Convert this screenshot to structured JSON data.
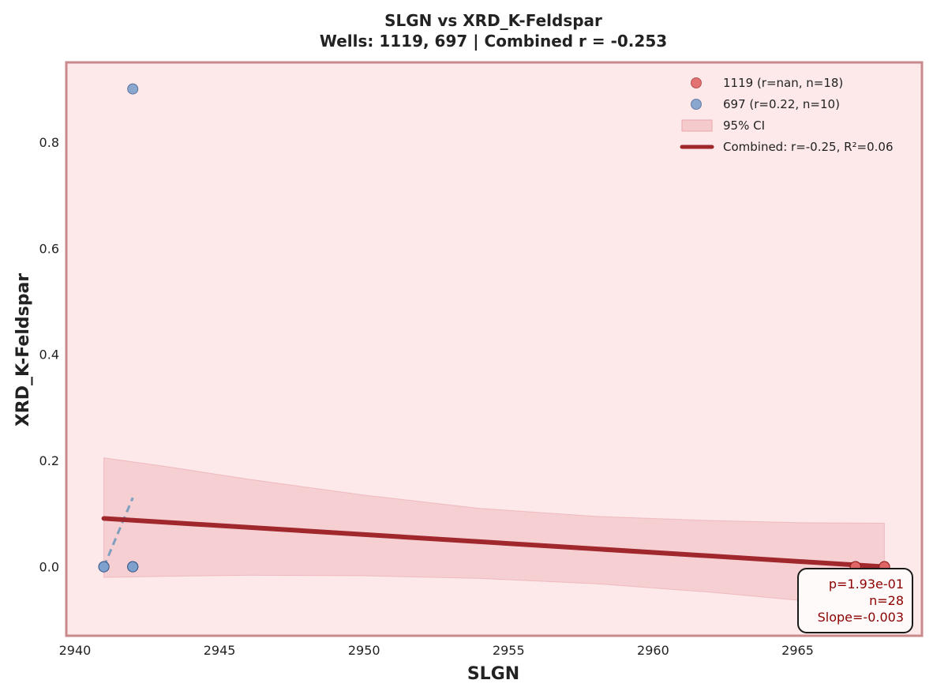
{
  "chart_data": {
    "type": "scatter",
    "title": "SLGN vs XRD_K-Feldspar",
    "subtitle": "Wells: 1119, 697 | Combined r = -0.253",
    "xlabel": "SLGN",
    "ylabel": "XRD_K-Feldspar",
    "xlim": [
      2939.7,
      2969.3
    ],
    "ylim": [
      -0.13,
      0.95
    ],
    "x_ticks": [
      2940,
      2945,
      2950,
      2955,
      2960,
      2965
    ],
    "y_ticks": [
      0.0,
      0.2,
      0.4,
      0.6,
      0.8
    ],
    "x_tick_labels": [
      "2940",
      "2945",
      "2950",
      "2955",
      "2960",
      "2965"
    ],
    "y_tick_labels": [
      "0.0",
      "0.2",
      "0.4",
      "0.6",
      "0.8"
    ],
    "grid": false,
    "legend_position": "top-right",
    "plot_background": "#fde8ea",
    "frame_color": "#c98a8c",
    "series": [
      {
        "name": "1119 (r=nan, n=18)",
        "color": "#e06666",
        "points": [
          {
            "x": 2967,
            "y": 0.0
          },
          {
            "x": 2967,
            "y": 0.0
          },
          {
            "x": 2967,
            "y": 0.0
          },
          {
            "x": 2967,
            "y": 0.0
          },
          {
            "x": 2967,
            "y": 0.0
          },
          {
            "x": 2967,
            "y": 0.0
          },
          {
            "x": 2967,
            "y": 0.0
          },
          {
            "x": 2967,
            "y": 0.0
          },
          {
            "x": 2967,
            "y": 0.0
          },
          {
            "x": 2968,
            "y": 0.0
          },
          {
            "x": 2968,
            "y": 0.0
          },
          {
            "x": 2968,
            "y": 0.0
          },
          {
            "x": 2968,
            "y": 0.0
          },
          {
            "x": 2968,
            "y": 0.0
          },
          {
            "x": 2968,
            "y": 0.0
          },
          {
            "x": 2968,
            "y": 0.0
          },
          {
            "x": 2968,
            "y": 0.0
          },
          {
            "x": 2968,
            "y": 0.0
          }
        ]
      },
      {
        "name": "697 (r=0.22, n=10)",
        "color": "#7da0cc",
        "points": [
          {
            "x": 2941,
            "y": 0.0
          },
          {
            "x": 2941,
            "y": 0.0
          },
          {
            "x": 2941,
            "y": 0.0
          },
          {
            "x": 2941,
            "y": 0.0
          },
          {
            "x": 2942,
            "y": 0.0
          },
          {
            "x": 2942,
            "y": 0.0
          },
          {
            "x": 2942,
            "y": 0.0
          },
          {
            "x": 2942,
            "y": 0.0
          },
          {
            "x": 2942,
            "y": 0.0
          },
          {
            "x": 2942,
            "y": 0.9
          }
        ],
        "trend": {
          "x": [
            2941,
            2942
          ],
          "y": [
            0.0,
            0.13
          ],
          "color": "#7f9fbf"
        }
      }
    ],
    "ci_band": {
      "name": "95% CI",
      "color": "#e8a6ab",
      "x": [
        2941,
        2943,
        2946,
        2950,
        2954,
        2958,
        2962,
        2965,
        2968
      ],
      "upper": [
        0.205,
        0.19,
        0.165,
        0.135,
        0.11,
        0.095,
        0.087,
        0.083,
        0.082
      ],
      "lower": [
        -0.02,
        -0.018,
        -0.016,
        -0.017,
        -0.022,
        -0.032,
        -0.048,
        -0.063,
        -0.08
      ]
    },
    "regression": {
      "name": "Combined: r=-0.25, R²=0.06",
      "color": "#a0282c",
      "x": [
        2941,
        2968
      ],
      "y": [
        0.091,
        0.0
      ]
    },
    "stats_box": {
      "lines": [
        "p=1.93e-01",
        "n=28",
        "Slope=-0.003"
      ]
    }
  }
}
